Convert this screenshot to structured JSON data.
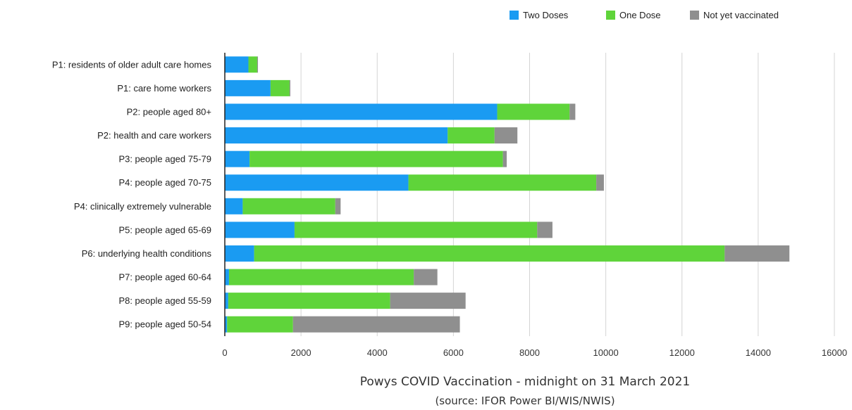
{
  "chart_data": {
    "type": "bar",
    "orientation": "horizontal",
    "stacked": true,
    "title": "Powys COVID Vaccination - midnight on 31 March 2021",
    "subtitle": "(source: IFOR Power BI/WIS/NWIS)",
    "xlim": [
      0,
      16000
    ],
    "xticks": [
      0,
      2000,
      4000,
      6000,
      8000,
      10000,
      12000,
      14000,
      16000
    ],
    "grid": "vertical",
    "legend_position": "top-right",
    "categories": [
      "P1: residents of older adult care homes",
      "P1: care home workers",
      "P2: people aged 80+",
      "P2: health and care workers",
      "P3: people aged 75-79",
      "P4: people aged 70-75",
      "P4: clinically extremely vulnerable",
      "P5: people aged 65-69",
      "P6: underlying health conditions",
      "P7: people aged 60-64",
      "P8: people aged 55-59",
      "P9: people aged 50-54"
    ],
    "series": [
      {
        "name": "Two Doses",
        "color": "#1a9bf2",
        "values": [
          620,
          1200,
          7150,
          5850,
          650,
          4820,
          470,
          1830,
          770,
          110,
          90,
          60
        ]
      },
      {
        "name": "One Dose",
        "color": "#5fd43a",
        "values": [
          230,
          500,
          1900,
          1230,
          6650,
          4930,
          2430,
          6370,
          12350,
          4850,
          4250,
          1730
        ]
      },
      {
        "name": "Not yet vaccinated",
        "color": "#8f8f8f",
        "values": [
          20,
          20,
          150,
          600,
          100,
          200,
          140,
          400,
          1700,
          620,
          1980,
          4380
        ]
      }
    ]
  }
}
